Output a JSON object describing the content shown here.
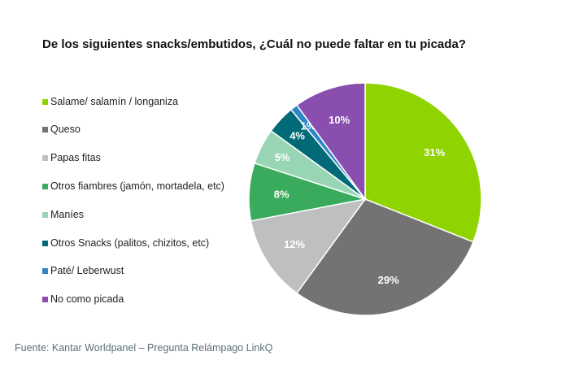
{
  "source": "Fuente: Kantar Worldpanel – Pregunta Relámpago LinkQ",
  "chart_data": {
    "type": "pie",
    "title": "De los siguientes snacks/embutidos, ¿Cuál no puede faltar en tu picada?",
    "legend_position": "left",
    "slices": [
      {
        "label": "Salame/ salamín / longaniza",
        "value": 31,
        "display": "31%",
        "color": "#8fd400"
      },
      {
        "label": "Queso",
        "value": 29,
        "display": "29%",
        "color": "#737373"
      },
      {
        "label": "Papas fitas",
        "value": 12,
        "display": "12%",
        "color": "#bfbfbf"
      },
      {
        "label": "Otros fiambres (jamón, mortadela, etc)",
        "value": 8,
        "display": "8%",
        "color": "#3aaa5c"
      },
      {
        "label": "Maníes",
        "value": 5,
        "display": "5%",
        "color": "#98d5b5"
      },
      {
        "label": "Otros Snacks (palitos, chizitos, etc)",
        "value": 4,
        "display": "4%",
        "color": "#006a77"
      },
      {
        "label": "Paté/ Leberwust",
        "value": 1,
        "display": "1%",
        "color": "#2e86c8"
      },
      {
        "label": "No como picada",
        "value": 10,
        "display": "10%",
        "color": "#8a4fae"
      }
    ]
  }
}
